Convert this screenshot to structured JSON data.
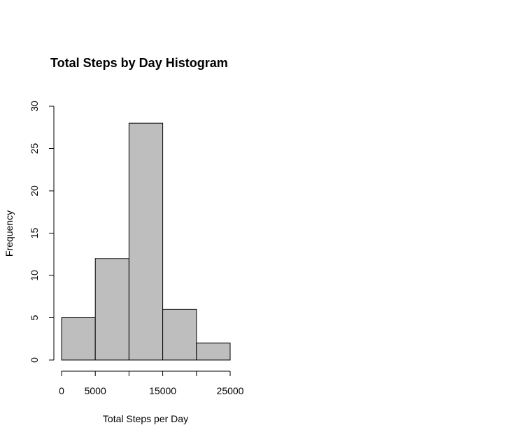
{
  "chart_data": {
    "type": "bar",
    "title": "Total Steps by Day Histogram",
    "xlabel": "Total Steps per Day",
    "ylabel": "Frequency",
    "bins": [
      {
        "from": 0,
        "to": 5000,
        "count": 5
      },
      {
        "from": 5000,
        "to": 10000,
        "count": 12
      },
      {
        "from": 10000,
        "to": 15000,
        "count": 28
      },
      {
        "from": 15000,
        "to": 20000,
        "count": 6
      },
      {
        "from": 20000,
        "to": 25000,
        "count": 2
      }
    ],
    "categories": [
      "0-5000",
      "5000-10000",
      "10000-15000",
      "15000-20000",
      "20000-25000"
    ],
    "values": [
      5,
      12,
      28,
      6,
      2
    ],
    "xlim": [
      0,
      25000
    ],
    "ylim": [
      0,
      30
    ],
    "xticks": [
      0,
      5000,
      10000,
      15000,
      20000,
      25000
    ],
    "xtick_labels": [
      "0",
      "5000",
      "",
      "15000",
      "",
      "25000"
    ],
    "yticks": [
      0,
      5,
      10,
      15,
      20,
      25,
      30
    ],
    "ytick_labels": [
      "0",
      "5",
      "10",
      "15",
      "20",
      "25",
      "30"
    ],
    "bar_color": "#bebebe",
    "grid": false
  }
}
